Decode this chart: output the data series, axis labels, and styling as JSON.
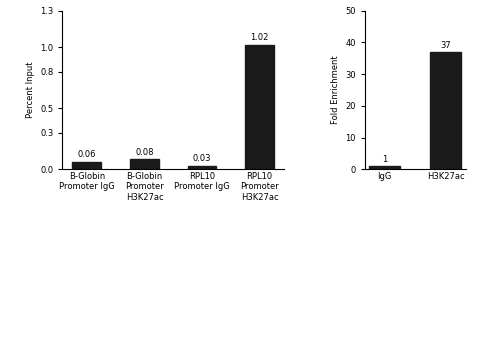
{
  "left_chart": {
    "categories": [
      "B-Globin\nPromoter IgG",
      "B-Globin\nPromoter\nH3K27ac",
      "RPL10\nPromoter IgG",
      "RPL10\nPromoter\nH3K27ac"
    ],
    "values": [
      0.06,
      0.08,
      0.03,
      1.02
    ],
    "ylabel": "Percent Input",
    "ylim": [
      0,
      1.3
    ],
    "yticks": [
      0.0,
      0.3,
      0.5,
      0.8,
      1.0,
      1.3
    ],
    "bar_color": "#1a1a1a",
    "bar_width": 0.5
  },
  "right_chart": {
    "categories": [
      "IgG",
      "H3K27ac"
    ],
    "values": [
      1,
      37
    ],
    "ylabel": "Fold Enrichment",
    "ylim": [
      0,
      50
    ],
    "yticks": [
      0,
      10,
      20,
      30,
      40,
      50
    ],
    "bar_color": "#1a1a1a",
    "bar_width": 0.5
  },
  "label_fontsize": 6,
  "tick_fontsize": 6,
  "value_fontsize": 6,
  "background_color": "#ffffff"
}
